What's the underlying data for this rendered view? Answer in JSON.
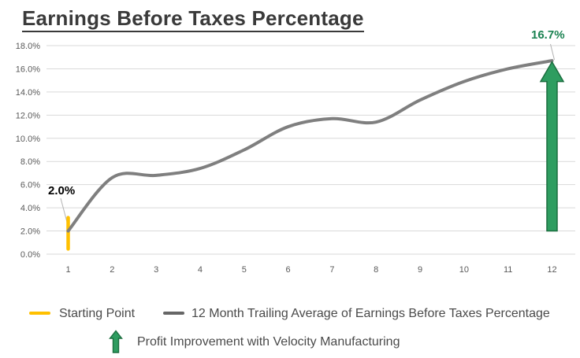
{
  "title": "Earnings Before Taxes Percentage",
  "colors": {
    "grid": "#d9d9d9",
    "axis_text": "#595959",
    "line": "#7f7f7f",
    "starting_point": "#ffc000",
    "arrow_fill": "#2e9d60",
    "arrow_stroke": "#1b6e3f",
    "leader": "#b3b3b3"
  },
  "chart_data": {
    "type": "line",
    "title": "Earnings Before Taxes Percentage",
    "categories": [
      "1",
      "2",
      "3",
      "4",
      "5",
      "6",
      "7",
      "8",
      "9",
      "10",
      "11",
      "12"
    ],
    "series": [
      {
        "name": "12 Month Trailing Average of Earnings Before Taxes Percentage",
        "values": [
          2.0,
          6.6,
          6.8,
          7.4,
          9.0,
          11.0,
          11.7,
          11.4,
          13.3,
          14.9,
          16.0,
          16.7
        ],
        "smooth": true
      }
    ],
    "starting_point_marker": {
      "month": 1,
      "value": 2.0,
      "span": [
        0.45,
        3.15
      ]
    },
    "improvement_arrow": {
      "month": 12,
      "from_value": 2.0,
      "to_value": 16.6
    },
    "ylim": [
      0,
      18
    ],
    "ytick_step": 2,
    "ytick_labels": [
      "0.0%",
      "2.0%",
      "4.0%",
      "6.0%",
      "8.0%",
      "10.0%",
      "12.0%",
      "14.0%",
      "16.0%",
      "18.0%"
    ],
    "grid": "horizontal",
    "legend_position": "bottom",
    "annotations": [
      {
        "label": "2.0%",
        "month": 1,
        "value": 2.0
      },
      {
        "label": "16.7%",
        "month": 12,
        "value": 16.7
      }
    ]
  },
  "legend": {
    "starting_point": "Starting Point",
    "trailing_average": "12 Month Trailing Average of Earnings Before Taxes Percentage",
    "profit_improvement": "Profit Improvement with Velocity Manufacturing"
  }
}
